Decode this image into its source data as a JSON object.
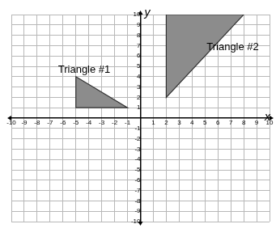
{
  "chart_data": {
    "type": "polygon",
    "x_label": "x",
    "y_label": "y",
    "xlim": [
      -10,
      10
    ],
    "ylim": [
      -10,
      10
    ],
    "xticks": [
      -10,
      -9,
      -8,
      -7,
      -6,
      -5,
      -4,
      -3,
      -2,
      -1,
      1,
      2,
      3,
      4,
      5,
      6,
      7,
      8,
      9,
      10
    ],
    "yticks": [
      -10,
      -9,
      -8,
      -7,
      -6,
      -5,
      -4,
      -3,
      -2,
      -1,
      1,
      2,
      3,
      4,
      5,
      6,
      7,
      8,
      9,
      10
    ],
    "grid": true,
    "series": [
      {
        "name": "Triangle #1",
        "color": "#8c8c8c",
        "x": [
          -5,
          -5,
          -1
        ],
        "y": [
          4,
          1,
          1
        ]
      },
      {
        "name": "Triangle #2",
        "color": "#8c8c8c",
        "x": [
          2,
          8,
          2
        ],
        "y": [
          10,
          10,
          2
        ]
      }
    ]
  }
}
